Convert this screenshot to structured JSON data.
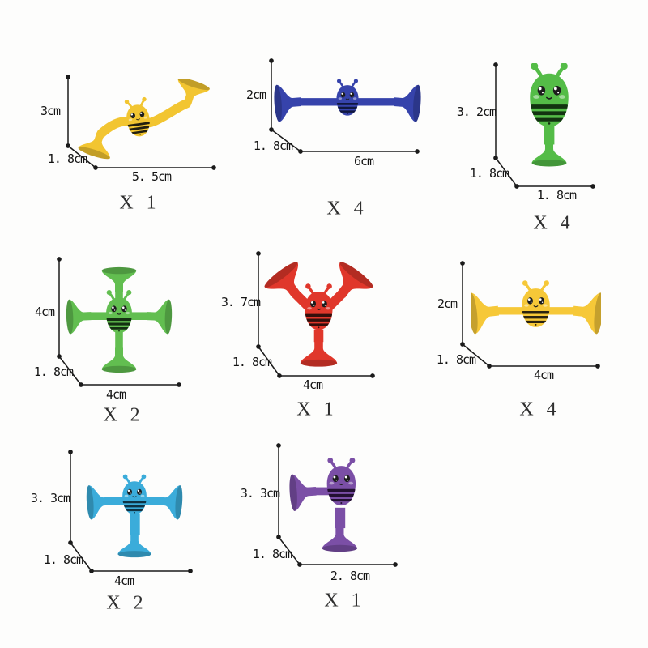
{
  "items": [
    {
      "name": "yellow-s-curve-suction-bee",
      "variant": "s-tube",
      "color": "#F2C531",
      "stripe": "#23200f",
      "height": "3cm",
      "depth": "1. 8cm",
      "width": "5. 5cm",
      "qty": "X 1"
    },
    {
      "name": "blue-double-suction-bar-bee",
      "variant": "bar",
      "color": "#3643AB",
      "stripe": "#10173f",
      "height": "2cm",
      "depth": "1. 8cm",
      "width": "6cm",
      "qty": "X 4"
    },
    {
      "name": "green-standing-suction-bee",
      "variant": "standing",
      "color": "#54BC47",
      "stripe": "#123310",
      "height": "3. 2cm",
      "depth": "1. 8cm",
      "width": "1. 8cm",
      "qty": "X 4"
    },
    {
      "name": "green-cross-suction-bee",
      "variant": "cross",
      "color": "#62BE50",
      "stripe": "#143012",
      "height": "4cm",
      "depth": "1. 8cm",
      "width": "4cm",
      "qty": "X 2"
    },
    {
      "name": "red-wing-suction-bee",
      "variant": "wings-up",
      "color": "#E0372B",
      "stripe": "#330f0c",
      "height": "3. 7cm",
      "depth": "1. 8cm",
      "width": "4cm",
      "qty": "X 1"
    },
    {
      "name": "yellow-double-suction-bar-bee",
      "variant": "bar2",
      "color": "#F6C838",
      "stripe": "#2b2410",
      "height": "2cm",
      "depth": "1. 8cm",
      "width": "4cm",
      "qty": "X 4"
    },
    {
      "name": "blue-tripod-suction-bee",
      "variant": "tripod",
      "color": "#3BACDA",
      "stripe": "#0e3344",
      "height": "3. 3cm",
      "depth": "1. 8cm",
      "width": "4cm",
      "qty": "X 2"
    },
    {
      "name": "purple-side-suction-bee",
      "variant": "side-stand",
      "color": "#7B4FA6",
      "stripe": "#231031",
      "height": "3. 3cm",
      "depth": "1. 8cm",
      "width": "2. 8cm",
      "qty": "X 1"
    }
  ],
  "line_color": "#1b1b1b"
}
